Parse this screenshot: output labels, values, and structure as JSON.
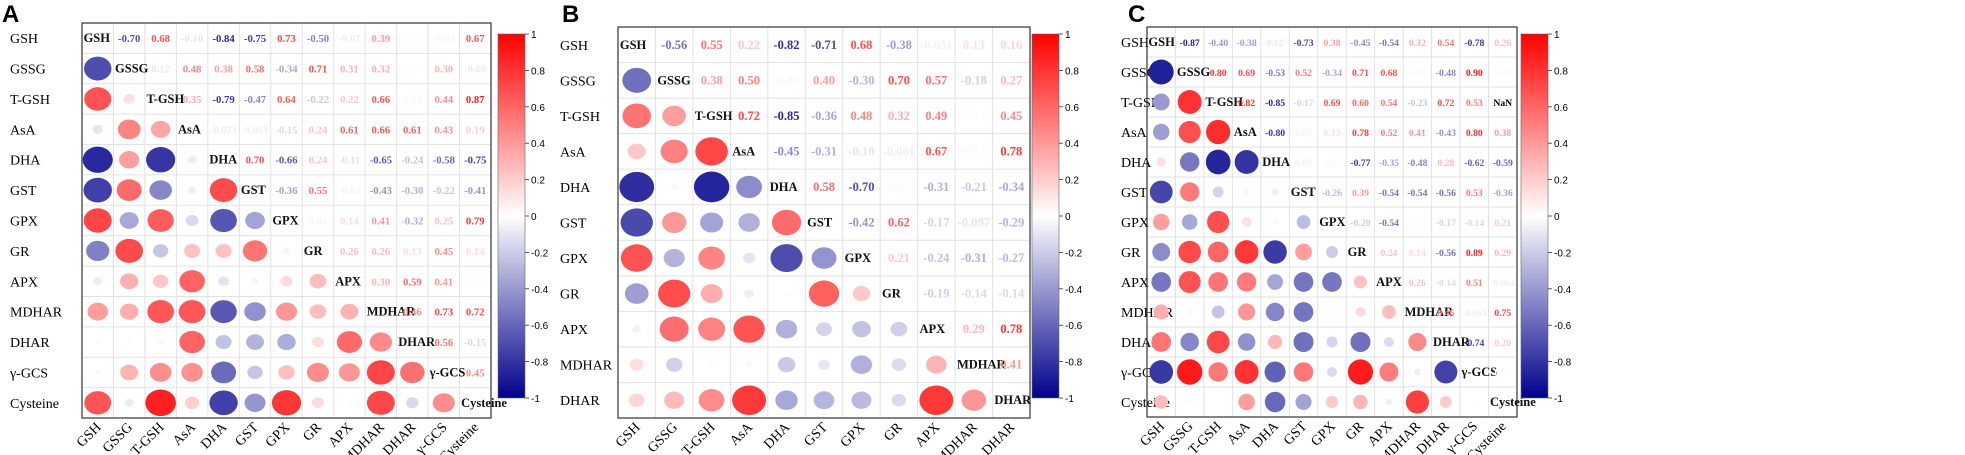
{
  "figure": {
    "colorbar_ticks": [
      "1",
      "0.8",
      "0.6",
      "0.4",
      "0.2",
      "0",
      "-0.2",
      "-0.4",
      "-0.6",
      "-0.8",
      "-1"
    ]
  },
  "colors": {
    "positive": "#ff0000",
    "negative": "#00008b",
    "neutral": "#ffffff"
  },
  "chart_data": [
    {
      "type": "heatmap",
      "panel": "A",
      "variables": [
        "GSH",
        "GSSG",
        "T-GSH",
        "AsA",
        "DHA",
        "GST",
        "GPX",
        "GR",
        "APX",
        "MDHAR",
        "DHAR",
        "γ-GCS",
        "Cysteine"
      ],
      "upper": [
        [
          -0.7,
          0.68,
          -0.1,
          -0.84,
          -0.75,
          0.73,
          -0.5,
          -0.07,
          0.39,
          0.02,
          -0.03,
          0.67
        ],
        [
          0.12,
          0.48,
          0.38,
          0.58,
          -0.34,
          0.71,
          0.31,
          0.32,
          0.02,
          0.3,
          -0.08
        ],
        [
          0.35,
          -0.79,
          -0.47,
          0.64,
          -0.22,
          0.22,
          0.66,
          0.03,
          0.44,
          0.87
        ],
        [
          -0.071,
          -0.061,
          -0.15,
          0.24,
          0.61,
          0.66,
          0.61,
          0.43,
          0.19
        ],
        [
          0.7,
          -0.66,
          0.24,
          -0.11,
          -0.65,
          -0.24,
          -0.58,
          -0.75
        ],
        [
          -0.36,
          0.55,
          -0.04,
          -0.43,
          -0.3,
          -0.22,
          -0.41
        ],
        [
          0.05,
          0.14,
          0.41,
          -0.32,
          0.25,
          0.79
        ],
        [
          0.26,
          0.26,
          0.13,
          0.45,
          0.14
        ],
        [
          0.3,
          0.59,
          0.41,
          -0.02
        ],
        [
          0.46,
          0.73,
          0.72
        ],
        [
          0.56,
          -0.15
        ],
        [
          0.45
        ]
      ],
      "colorbar_range": [
        -1,
        1
      ]
    },
    {
      "type": "heatmap",
      "panel": "B",
      "variables": [
        "GSH",
        "GSSG",
        "T-GSH",
        "AsA",
        "DHA",
        "GST",
        "GPX",
        "GR",
        "APX",
        "MDHAR",
        "DHAR"
      ],
      "upper": [
        [
          -0.56,
          0.55,
          0.22,
          -0.82,
          -0.71,
          0.68,
          -0.38,
          -0.051,
          0.13,
          0.16
        ],
        [
          0.38,
          0.5,
          -0.03,
          0.4,
          -0.3,
          0.7,
          0.57,
          -0.18,
          0.27
        ],
        [
          0.72,
          -0.85,
          -0.36,
          0.48,
          0.32,
          0.49,
          0.02,
          0.45
        ],
        [
          -0.45,
          -0.31,
          -0.1,
          -0.061,
          0.67,
          0.03,
          0.78
        ],
        [
          0.58,
          -0.7,
          0.02,
          -0.31,
          -0.21,
          -0.34
        ],
        [
          -0.42,
          0.62,
          -0.17,
          -0.097,
          -0.29
        ],
        [
          0.21,
          -0.24,
          -0.31,
          -0.27
        ],
        [
          -0.19,
          -0.14,
          -0.14
        ],
        [
          0.29,
          0.78
        ],
        [
          0.41
        ]
      ],
      "colorbar_range": [
        -1,
        1
      ]
    },
    {
      "type": "heatmap",
      "panel": "C",
      "variables": [
        "GSH",
        "GSSG",
        "T-GSH",
        "AsA",
        "DHA",
        "GST",
        "GPX",
        "GR",
        "APX",
        "MDHAR",
        "DHAR",
        "γ-GCS",
        "Cysteine"
      ],
      "upper": [
        [
          -0.87,
          -0.4,
          -0.38,
          0.12,
          -0.73,
          0.38,
          -0.45,
          -0.54,
          0.32,
          0.54,
          -0.78,
          0.26
        ],
        [
          0.8,
          0.69,
          -0.53,
          0.52,
          -0.34,
          0.71,
          0.68,
          0.03,
          -0.48,
          0.9,
          -0.02
        ],
        [
          0.82,
          -0.85,
          -0.17,
          0.69,
          0.6,
          0.54,
          -0.23,
          0.72,
          0.53
        ],
        [
          -0.8,
          0.05,
          0.13,
          0.78,
          0.52,
          0.41,
          -0.43,
          0.8,
          0.38
        ],
        [
          0.07,
          0.03,
          -0.77,
          -0.35,
          -0.48,
          0.28,
          -0.62,
          -0.59
        ],
        [
          -0.26,
          0.39,
          -0.54,
          -0.54,
          -0.56,
          0.53,
          -0.36
        ],
        [
          -0.2,
          -0.54,
          0.02,
          -0.17,
          -0.14,
          0.21
        ],
        [
          0.24,
          0.14,
          -0.56,
          0.89,
          0.29
        ],
        [
          0.26,
          -0.14,
          0.51,
          -0.064
        ],
        [
          0.46,
          -0.061,
          0.75
        ],
        [
          -0.74,
          0.2
        ],
        [
          0.02
        ]
      ],
      "colorbar_range": [
        -1,
        1
      ]
    }
  ]
}
